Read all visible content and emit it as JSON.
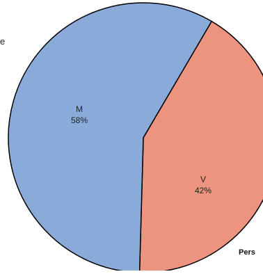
{
  "chart_data": {
    "type": "pie",
    "slices": [
      {
        "label": "M",
        "value": 58,
        "value_label": "58%",
        "color": "#8aabda"
      },
      {
        "label": "V",
        "value": 42,
        "value_label": "42%",
        "color": "#ec9480"
      }
    ],
    "stroke_color": "#000000"
  },
  "side_text": "e",
  "legend_title": "Pers"
}
